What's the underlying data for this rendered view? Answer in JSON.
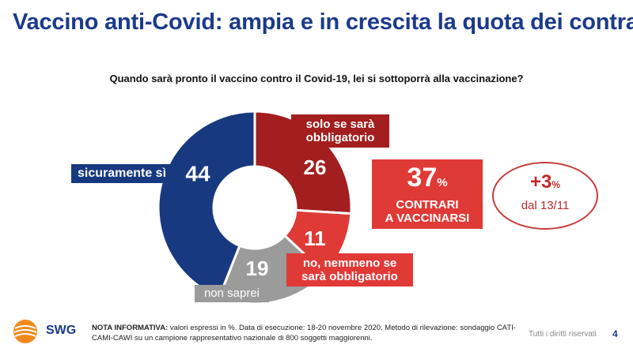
{
  "header": {
    "title": "Vaccino anti-Covid: ampia e in crescita la quota dei contrari",
    "question": "Quando sarà pronto il vaccino contro il Covid-19, lei si sottoporrà alla vaccinazione?"
  },
  "chart_data": {
    "type": "pie",
    "donut": true,
    "categories": [
      "sicuramente sì",
      "solo se sarà obbligatorio",
      "no, nemmeno se sarà obbligatorio",
      "non saprei"
    ],
    "values": [
      44,
      26,
      11,
      19
    ],
    "value_labels": [
      "44",
      "26",
      "11",
      "19"
    ],
    "colors": [
      "#17397f",
      "#a31e1e",
      "#e03a37",
      "#9b9b9b"
    ],
    "labels": {
      "blue": "sicuramente sì",
      "dark_line1": "solo se sarà",
      "dark_line2": "obbligatorio",
      "red_line1": "no, nemmeno se",
      "red_line2": "sarà obbligatorio",
      "gray": "non saprei"
    }
  },
  "summary": {
    "value": "37",
    "unit": "%",
    "line1": "CONTRARI",
    "line2": "A VACCINARSI"
  },
  "change_badge": {
    "value": "+3",
    "unit": "%",
    "date": "dal 13/11"
  },
  "footer": {
    "logo_text": "SWG",
    "note_label": "NOTA INFORMATIVA:",
    "note_text": "valori espressi in %. Data di esecuzione: 18-20 novembre 2020. Metodo di rilevazione: sondaggio CATI-CAMI-CAWI su un campione rappresentativo nazionale di 800 soggetti maggiorenni.",
    "rights": "Tutti i diritti riservati",
    "page": "4"
  },
  "colors": {
    "title": "#1b3a8c",
    "accent_red": "#e03a37",
    "dark_red": "#a31e1e",
    "navy": "#17397f",
    "gray": "#9b9b9b"
  }
}
